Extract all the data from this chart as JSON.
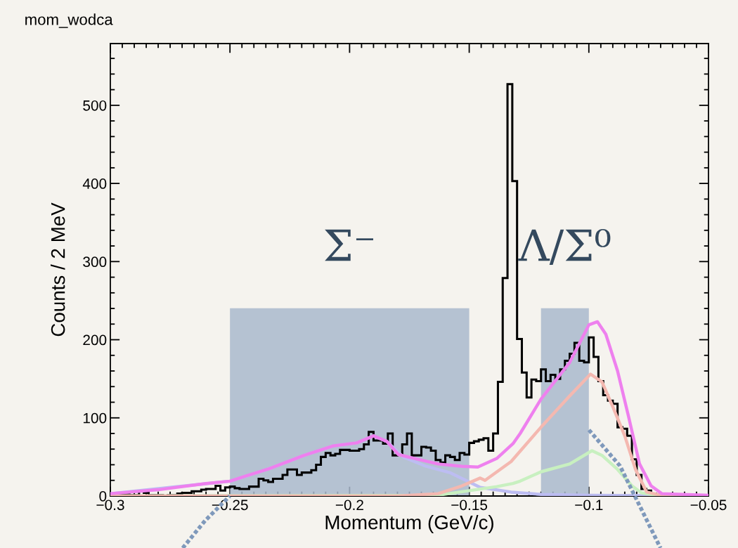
{
  "chart_data": {
    "type": "histogram",
    "title": "mom_wodca",
    "xlabel": "Momentum (GeV/c)",
    "ylabel": "Counts / 2 MeV",
    "xlim": [
      -0.3,
      -0.05
    ],
    "ylim": [
      0,
      579
    ],
    "xticks": [
      {
        "value": -0.3,
        "label": "−0.3"
      },
      {
        "value": -0.25,
        "label": "−0.25"
      },
      {
        "value": -0.2,
        "label": "−0.2"
      },
      {
        "value": -0.15,
        "label": "−0.15"
      },
      {
        "value": -0.1,
        "label": "−0.1"
      },
      {
        "value": -0.05,
        "label": "−0.05"
      }
    ],
    "yticks": [
      0,
      100,
      200,
      300,
      400,
      500
    ],
    "bins": [
      -0.3,
      -0.298,
      -0.296,
      -0.294,
      -0.292,
      -0.29,
      -0.288,
      -0.286,
      -0.284,
      -0.282,
      -0.28,
      -0.278,
      -0.276,
      -0.274,
      -0.272,
      -0.27,
      -0.268,
      -0.266,
      -0.264,
      -0.262,
      -0.26,
      -0.258,
      -0.256,
      -0.254,
      -0.252,
      -0.25,
      -0.248,
      -0.246,
      -0.244,
      -0.242,
      -0.24,
      -0.238,
      -0.236,
      -0.234,
      -0.232,
      -0.23,
      -0.228,
      -0.226,
      -0.224,
      -0.222,
      -0.22,
      -0.218,
      -0.216,
      -0.214,
      -0.212,
      -0.21,
      -0.208,
      -0.206,
      -0.204,
      -0.202,
      -0.2,
      -0.198,
      -0.196,
      -0.194,
      -0.192,
      -0.19,
      -0.188,
      -0.186,
      -0.184,
      -0.182,
      -0.18,
      -0.178,
      -0.176,
      -0.174,
      -0.172,
      -0.17,
      -0.168,
      -0.166,
      -0.164,
      -0.162,
      -0.16,
      -0.158,
      -0.156,
      -0.154,
      -0.152,
      -0.15,
      -0.148,
      -0.146,
      -0.144,
      -0.142,
      -0.14,
      -0.138,
      -0.136,
      -0.134,
      -0.132,
      -0.13,
      -0.128,
      -0.126,
      -0.124,
      -0.122,
      -0.12,
      -0.118,
      -0.116,
      -0.114,
      -0.112,
      -0.11,
      -0.108,
      -0.106,
      -0.104,
      -0.102,
      -0.1,
      -0.098,
      -0.096,
      -0.094,
      -0.092,
      -0.09,
      -0.088,
      -0.086,
      -0.084,
      -0.082,
      -0.08,
      -0.078,
      -0.076,
      -0.074,
      -0.072,
      -0.07,
      -0.068,
      -0.066,
      -0.064,
      -0.062,
      -0.06,
      -0.058,
      -0.056,
      -0.054,
      -0.052,
      -0.05
    ],
    "series": [
      {
        "type": "line",
        "color": "#bdbdf2",
        "x": [
          -0.3,
          -0.25,
          -0.2336,
          -0.219,
          -0.207,
          -0.197,
          -0.19,
          -0.1845,
          -0.1776,
          -0.168,
          -0.1582,
          -0.1508,
          -0.1454,
          -0.1325,
          -0.12,
          -0.1,
          -0.05
        ],
        "values": [
          3,
          19,
          35,
          52,
          64,
          68,
          77,
          70,
          50,
          38,
          30,
          19,
          11,
          5,
          2,
          1,
          0
        ]
      },
      {
        "type": "line",
        "color": "#c8f0c0",
        "x": [
          -0.3,
          -0.163,
          -0.1385,
          -0.1317,
          -0.1287,
          -0.12,
          -0.108,
          -0.0987,
          -0.0945,
          -0.088,
          -0.082,
          -0.078,
          -0.07,
          -0.05
        ],
        "values": [
          0,
          1,
          12,
          16,
          19,
          31,
          41,
          58,
          52,
          34,
          13,
          4,
          0,
          0
        ]
      },
      {
        "type": "line",
        "color": "#f4b8b0",
        "x": [
          -0.3,
          -0.18,
          -0.163,
          -0.153,
          -0.1454,
          -0.1434,
          -0.1325,
          -0.12,
          -0.108,
          -0.0993,
          -0.0945,
          -0.0898,
          -0.085,
          -0.0805,
          -0.0758,
          -0.07,
          -0.05
        ],
        "values": [
          0,
          0,
          3,
          13,
          23,
          20,
          44,
          88,
          128,
          156,
          146,
          113,
          77,
          34,
          5,
          1,
          0
        ]
      },
      {
        "type": "line",
        "color": "#ee80ee",
        "x": [
          -0.3,
          -0.28,
          -0.26,
          -0.25,
          -0.243,
          -0.2336,
          -0.219,
          -0.207,
          -0.197,
          -0.19,
          -0.1845,
          -0.1796,
          -0.1728,
          -0.163,
          -0.153,
          -0.1464,
          -0.1385,
          -0.1317,
          -0.1287,
          -0.12,
          -0.108,
          -0.1,
          -0.0964,
          -0.0929,
          -0.088,
          -0.0835,
          -0.0788,
          -0.074,
          -0.0695,
          -0.05
        ],
        "values": [
          3,
          8,
          16,
          19,
          26,
          35,
          52,
          64,
          68,
          77,
          70,
          53,
          48,
          41,
          38,
          37,
          48,
          67,
          80,
          124,
          171,
          219,
          223,
          207,
          160,
          103,
          41,
          13,
          3,
          1
        ]
      }
    ],
    "color": "#000000",
    "values": [
      3,
      3,
      2,
      2,
      1,
      1,
      6,
      4,
      1,
      1,
      1,
      0,
      1,
      1,
      3,
      4,
      4,
      6,
      6,
      8,
      9,
      9,
      13,
      7,
      11,
      12,
      10,
      9,
      9,
      12,
      12,
      22,
      20,
      18,
      22,
      22,
      27,
      34,
      34,
      27,
      30,
      30,
      33,
      40,
      50,
      55,
      52,
      54,
      59,
      59,
      58,
      58,
      60,
      66,
      82,
      71,
      71,
      67,
      80,
      52,
      53,
      66,
      80,
      52,
      52,
      63,
      62,
      58,
      46,
      43,
      52,
      50,
      46,
      55,
      53,
      68,
      70,
      72,
      74,
      58,
      80,
      146,
      279,
      527,
      403,
      201,
      158,
      126,
      149,
      147,
      162,
      147,
      155,
      150,
      162,
      173,
      182,
      196,
      173,
      171,
      203,
      178,
      147,
      129,
      122,
      118,
      88,
      86,
      77,
      47,
      27,
      9,
      7,
      3,
      2,
      3,
      2,
      1,
      2,
      1,
      1,
      0,
      1,
      0,
      1
    ],
    "bands": [
      {
        "axis": "x",
        "from": -0.25,
        "to": -0.15,
        "label": "Σ⁻",
        "color": "#a9b9cc"
      },
      {
        "axis": "x",
        "from": -0.12,
        "to": -0.1,
        "label": "Λ/Σ⁰",
        "color": "#a9b9cc"
      }
    ]
  }
}
